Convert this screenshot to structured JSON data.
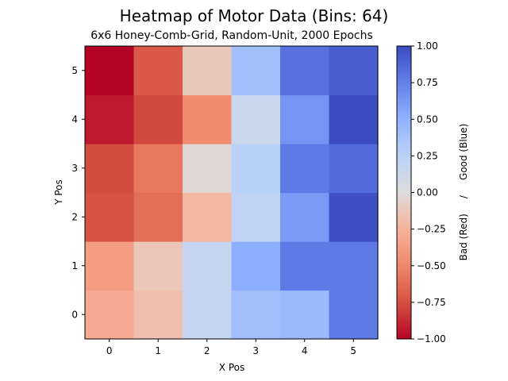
{
  "chart_data": {
    "type": "heatmap",
    "title": "Heatmap of Motor Data (Bins: 64)",
    "subtitle": "6x6 Honey-Comb-Grid, Random-Unit, 2000 Epochs",
    "xlabel": "X Pos",
    "ylabel": "Y Pos",
    "x": [
      0,
      1,
      2,
      3,
      4,
      5
    ],
    "y": [
      0,
      1,
      2,
      3,
      4,
      5
    ],
    "values": [
      [
        -0.3,
        -0.17,
        0.18,
        0.4,
        0.44,
        0.78
      ],
      [
        -0.38,
        -0.13,
        0.18,
        0.52,
        0.78,
        0.78
      ],
      [
        -0.75,
        -0.62,
        -0.22,
        0.22,
        0.62,
        0.98
      ],
      [
        -0.77,
        -0.58,
        -0.03,
        0.26,
        0.78,
        0.85
      ],
      [
        -0.93,
        -0.78,
        -0.48,
        0.15,
        0.65,
        1.0
      ],
      [
        -1.0,
        -0.72,
        -0.12,
        0.4,
        0.82,
        0.92
      ]
    ],
    "zlim": [
      -1.0,
      1.0
    ],
    "colormap": "coolwarm",
    "colorbar_label": "Bad (Red)     /     Good (Blue)",
    "colorbar_ticks": [
      "−1.00",
      "−0.75",
      "−0.50",
      "−0.25",
      "0.00",
      "0.25",
      "0.50",
      "0.75",
      "1.00"
    ],
    "colorbar_tick_values": [
      -1.0,
      -0.75,
      -0.5,
      -0.25,
      0.0,
      0.25,
      0.5,
      0.75,
      1.0
    ],
    "grid": false
  }
}
